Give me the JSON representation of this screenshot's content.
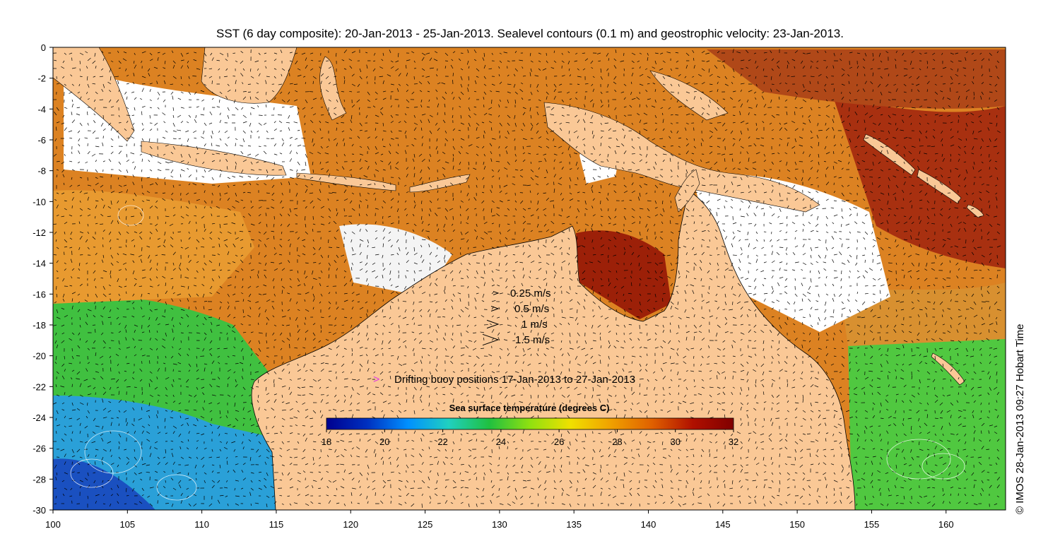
{
  "title": "SST (6 day composite): 20-Jan-2013 - 25-Jan-2013. Sealevel contours (0.1 m) and geostrophic velocity: 23-Jan-2013.",
  "credit": "© IMOS 28-Jan-2013 09:27 Hobart Time",
  "axes": {
    "x_ticks": [
      "100",
      "105",
      "110",
      "115",
      "120",
      "125",
      "130",
      "135",
      "140",
      "145",
      "150",
      "155",
      "160"
    ],
    "y_ticks": [
      "0",
      "-2",
      "-4",
      "-6",
      "-8",
      "-10",
      "-12",
      "-14",
      "-16",
      "-18",
      "-20",
      "-22",
      "-24",
      "-26",
      "-28",
      "-30"
    ],
    "lon_range": [
      100,
      164
    ],
    "lat_range": [
      -30,
      0
    ]
  },
  "velocity_legend": [
    {
      "speed": 0.25,
      "label": "0.25 m/s"
    },
    {
      "speed": 0.5,
      "label": "0.5 m/s"
    },
    {
      "speed": 1,
      "label": "1 m/s"
    },
    {
      "speed": 1.5,
      "label": "1.5 m/s"
    }
  ],
  "buoy_legend": {
    "label": "Drifting buoy positions 17-Jan-2013 to 27-Jan-2013",
    "symbol": ">",
    "color": "#e040e0"
  },
  "colorbar": {
    "title": "Sea surface temperature (degrees C)",
    "min": 18,
    "max": 32,
    "ticks": [
      "18",
      "20",
      "22",
      "24",
      "26",
      "28",
      "30",
      "32"
    ],
    "colors": [
      "#00008f",
      "#0030c0",
      "#0090ff",
      "#20d0c0",
      "#20c040",
      "#90e010",
      "#f0e000",
      "#f0a000",
      "#e06000",
      "#b01000",
      "#800000"
    ]
  },
  "colors": {
    "land": "#fac896",
    "warm_sst": "#d8741a",
    "cool_sst": "#28b048"
  }
}
